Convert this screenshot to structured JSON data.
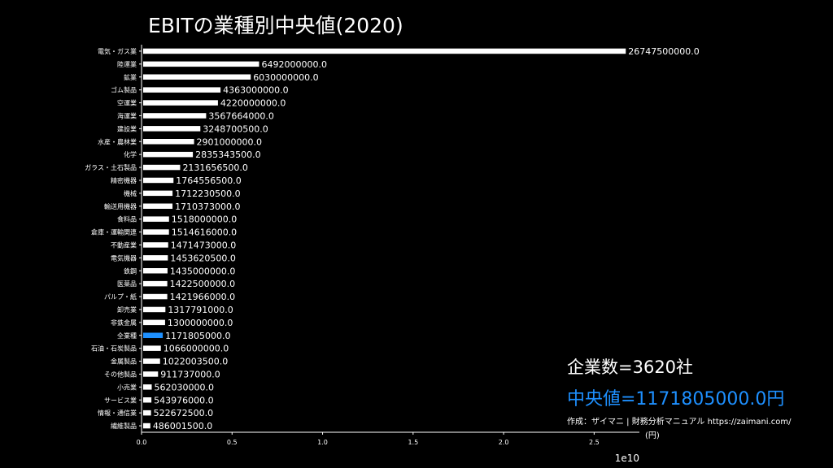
{
  "chart_data": {
    "type": "bar",
    "orientation": "horizontal",
    "title": "EBITの業種別中央値(2020)",
    "categories": [
      "電気・ガス業",
      "陸運業",
      "鉱業",
      "ゴム製品",
      "空運業",
      "海運業",
      "建設業",
      "水産・農林業",
      "化学",
      "ガラス・土石製品",
      "精密機器",
      "機械",
      "輸送用機器",
      "食料品",
      "倉庫・運輸関連",
      "不動産業",
      "電気機器",
      "鉄鋼",
      "医薬品",
      "パルプ・紙",
      "卸売業",
      "非鉄金属",
      "全業種",
      "石油・石炭製品",
      "金属製品",
      "その他製品",
      "小売業",
      "サービス業",
      "情報・通信業",
      "繊維製品"
    ],
    "values": [
      26747500000.0,
      6492000000.0,
      6030000000.0,
      4363000000.0,
      4220000000.0,
      3567664000.0,
      3248700500.0,
      2901000000.0,
      2835343500.0,
      2131656500.0,
      1764556500.0,
      1712230500.0,
      1710373000.0,
      1518000000.0,
      1514616000.0,
      1471473000.0,
      1453620500.0,
      1435000000.0,
      1422500000.0,
      1421966000.0,
      1317791000.0,
      1300000000.0,
      1171805000.0,
      1066000000.0,
      1022003500.0,
      911737000.0,
      562030000.0,
      543976000.0,
      522672500.0,
      486001500.0
    ],
    "value_labels": [
      "26747500000.0",
      "6492000000.0",
      "6030000000.0",
      "4363000000.0",
      "4220000000.0",
      "3567664000.0",
      "3248700500.0",
      "2901000000.0",
      "2835343500.0",
      "2131656500.0",
      "1764556500.0",
      "1712230500.0",
      "1710373000.0",
      "1518000000.0",
      "1514616000.0",
      "1471473000.0",
      "1453620500.0",
      "1435000000.0",
      "1422500000.0",
      "1421966000.0",
      "1317791000.0",
      "1300000000.0",
      "1171805000.0",
      "1066000000.0",
      "1022003500.0",
      "911737000.0",
      "562030000.0",
      "543976000.0",
      "522672500.0",
      "486001500.0"
    ],
    "highlight_category": "全業種",
    "xlim": [
      0,
      27500000000
    ],
    "xticks": [
      0,
      5000000000,
      10000000000,
      15000000000,
      20000000000,
      25000000000
    ],
    "xtick_labels": [
      "0.0",
      "0.5",
      "1.0",
      "1.5",
      "2.0",
      "2.5"
    ],
    "x_scale_label": "1e10",
    "grid": false,
    "colors": {
      "bar": "#ffffff",
      "highlight": "#1e90ff",
      "background": "#000000",
      "text": "#ffffff"
    }
  },
  "info": {
    "company_count": "企業数=3620社",
    "median_text": "中央値=1171805000.0円",
    "credit": "作成：ザイマニ | 財務分析マニュアル https://zaimani.com/",
    "unit": "(円)"
  }
}
